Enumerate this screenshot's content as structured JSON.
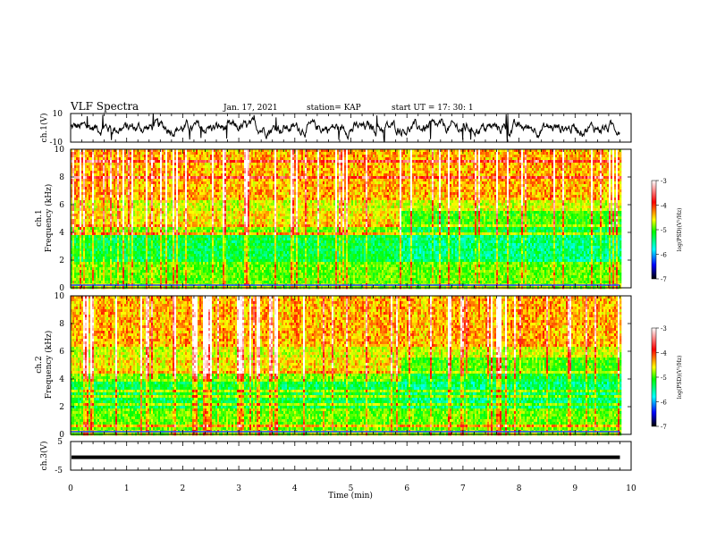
{
  "header": {
    "title": "VLF Spectra",
    "date": "Jan. 17, 2021",
    "station": "station= KAP",
    "start": "start  UT  =   17: 30: 1"
  },
  "colors": {
    "trace": "#000000",
    "frame": "#000000"
  },
  "chart_data": [
    {
      "type": "line",
      "panel": "ch1-waveform",
      "ylabel": "ch.1(V)",
      "ylim": [
        -10,
        10
      ],
      "yticks": [
        "10",
        "-10"
      ],
      "xlim": [
        0,
        10
      ],
      "x_extent": 9.8
    },
    {
      "type": "heatmap",
      "panel": "ch1-spectrogram",
      "ylabel": "ch.1\nFrequency  (kHz)",
      "ylabel_lines": [
        "ch.1",
        "Frequency  (kHz)"
      ],
      "ylim": [
        0,
        10
      ],
      "yticks": [
        "0",
        "2",
        "4",
        "6",
        "8",
        "10"
      ],
      "xlim": [
        0,
        10
      ],
      "x_extent": 9.8,
      "change_time_min": 5.9,
      "colorbar": {
        "ticks": [
          "-3",
          "-4",
          "-5",
          "-6",
          "-7"
        ],
        "label": "log(PSD)(V²/Hz)",
        "range": [
          -7,
          -3
        ]
      }
    },
    {
      "type": "heatmap",
      "panel": "ch2-spectrogram",
      "ylabel": "ch.2\nFrequency  (kHz)",
      "ylabel_lines": [
        "ch.2",
        "Frequency  (kHz)"
      ],
      "ylim": [
        0,
        10
      ],
      "yticks": [
        "0",
        "2",
        "4",
        "6",
        "8",
        "10"
      ],
      "xlim": [
        0,
        10
      ],
      "x_extent": 9.8,
      "change_time_min": 5.9,
      "colorbar": {
        "ticks": [
          "-3",
          "-4",
          "-5",
          "-6",
          "-7"
        ],
        "label": "log(PSD)(V²/Hz)",
        "range": [
          -7,
          -3
        ]
      }
    },
    {
      "type": "line",
      "panel": "ch3-waveform",
      "ylabel": "ch.3(V)",
      "ylim": [
        -5,
        5
      ],
      "yticks": [
        "5",
        "-5"
      ],
      "xlim": [
        0,
        10
      ],
      "x_extent": 9.8,
      "level": -0.5
    }
  ],
  "xaxis": {
    "label": "Time  (min)",
    "ticks": [
      "0",
      "1",
      "2",
      "3",
      "4",
      "5",
      "6",
      "7",
      "8",
      "9",
      "10"
    ]
  }
}
